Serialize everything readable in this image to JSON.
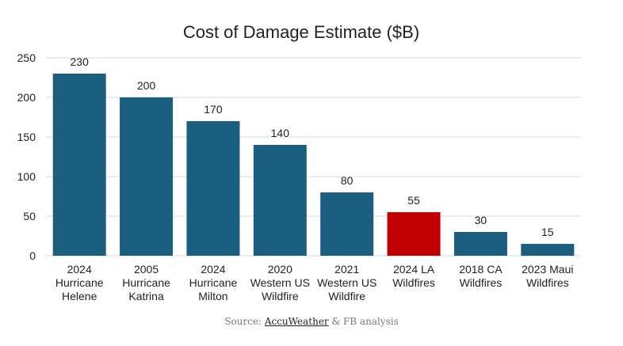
{
  "chart_data": {
    "type": "bar",
    "title": "Cost of Damage Estimate ($B)",
    "categories": [
      [
        "2024",
        "Hurricane",
        "Helene"
      ],
      [
        "2005",
        "Hurricane",
        "Katrina"
      ],
      [
        "2024",
        "Hurricane",
        "Milton"
      ],
      [
        "2020",
        "Western US",
        "Wildfire"
      ],
      [
        "2021",
        "Western US",
        "Wildfire"
      ],
      [
        "2024 LA",
        "Wildfires"
      ],
      [
        "2018 CA",
        "Wildfires"
      ],
      [
        "2023 Maui",
        "Wildfires"
      ]
    ],
    "values": [
      230,
      200,
      170,
      140,
      80,
      55,
      30,
      15
    ],
    "data_labels": [
      "230",
      "200",
      "170",
      "140",
      "80",
      "55",
      "30",
      "15"
    ],
    "bar_colors": [
      "#1b5e80",
      "#1b5e80",
      "#1b5e80",
      "#1b5e80",
      "#1b5e80",
      "#c00000",
      "#1b5e80",
      "#1b5e80"
    ],
    "ylim": [
      0,
      250
    ],
    "yticks": [
      "0",
      "50",
      "100",
      "150",
      "200",
      "250"
    ],
    "xlabel": "",
    "ylabel": "",
    "grid": true
  },
  "source": {
    "prefix": "Source: ",
    "link_text": "AccuWeather",
    "suffix": " & FB analysis"
  }
}
